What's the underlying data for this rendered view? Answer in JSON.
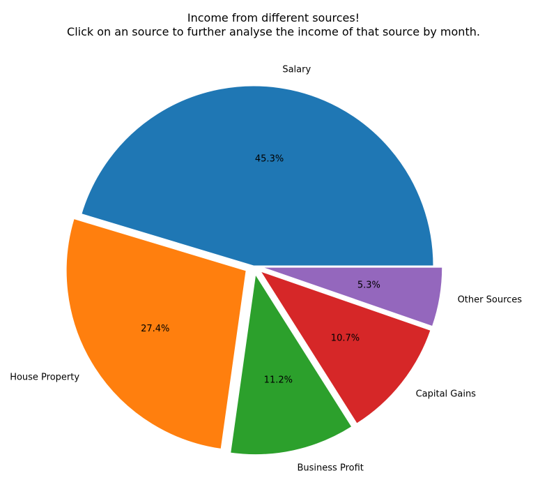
{
  "chart_data": {
    "type": "pie",
    "title_lines": [
      "Income from different sources!",
      "Click on an source to further analyse the income of that source by month."
    ],
    "start_angle_deg": 0,
    "direction": "counterclockwise",
    "slices": [
      {
        "label": "Salary",
        "percent": 45.3,
        "percent_label": "45.3%",
        "color": "#1f77b4",
        "exploded": false
      },
      {
        "label": "House Property",
        "percent": 27.4,
        "percent_label": "27.4%",
        "color": "#ff7f0e",
        "exploded": true
      },
      {
        "label": "Business Profit",
        "percent": 11.2,
        "percent_label": "11.2%",
        "color": "#2ca02c",
        "exploded": true
      },
      {
        "label": "Capital Gains",
        "percent": 10.7,
        "percent_label": "10.7%",
        "color": "#d62728",
        "exploded": true
      },
      {
        "label": "Other Sources",
        "percent": 5.3,
        "percent_label": "5.3%",
        "color": "#9467bd",
        "exploded": true
      }
    ]
  }
}
